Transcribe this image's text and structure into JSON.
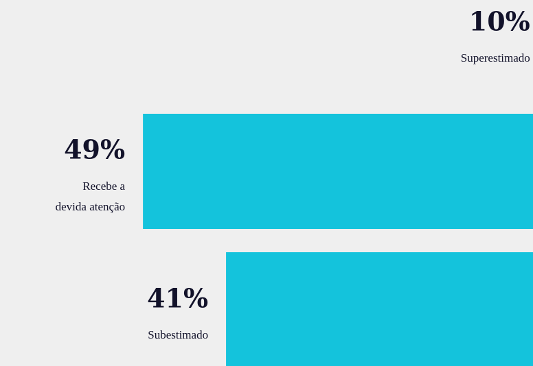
{
  "chart_data": {
    "type": "bar",
    "orientation": "horizontal",
    "categories": [
      [
        "Superestimado"
      ],
      [
        "Recebe a",
        "devida atenção"
      ],
      [
        "Subestimado"
      ]
    ],
    "values": [
      10,
      49,
      41
    ],
    "value_labels": [
      "10%",
      "49%",
      "41%"
    ],
    "color": "#14c3dc"
  }
}
